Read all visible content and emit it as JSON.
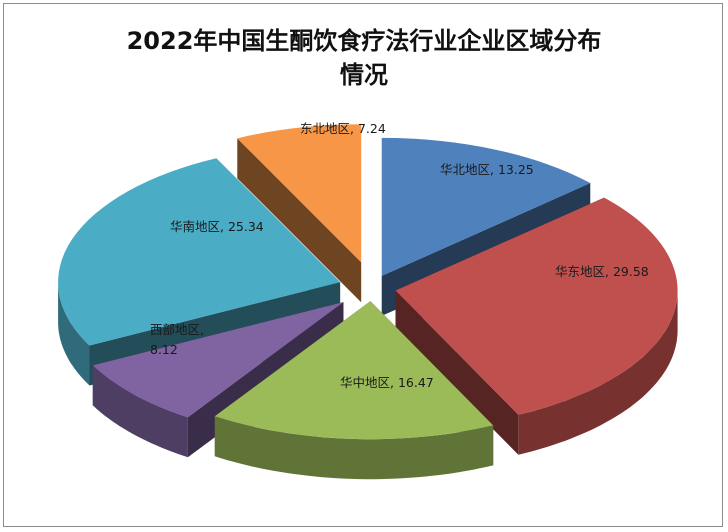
{
  "chart_data": {
    "type": "pie",
    "title": "2022年中国生酮饮食疗法行业企业区域分布",
    "title_line2": "情况",
    "categories": [
      "华北地区",
      "华东地区",
      "华中地区",
      "西部地区",
      "华南地区",
      "东北地区"
    ],
    "values": [
      13.25,
      29.58,
      16.47,
      8.12,
      25.34,
      7.24
    ],
    "labels": [
      "华北地区, 13.25",
      "华东地区, 29.58",
      "华中地区, 16.47",
      "西部地区,",
      "华南地区, 25.34",
      "东北地区, 7.24"
    ],
    "label_line2": [
      "",
      "",
      "",
      "8.12",
      "",
      ""
    ],
    "colors": [
      "#4f81bd",
      "#c0504d",
      "#9bbb59",
      "#8064a2",
      "#4bacc6",
      "#f79646"
    ],
    "style": "3d-exploded-pie",
    "legend": "none"
  }
}
